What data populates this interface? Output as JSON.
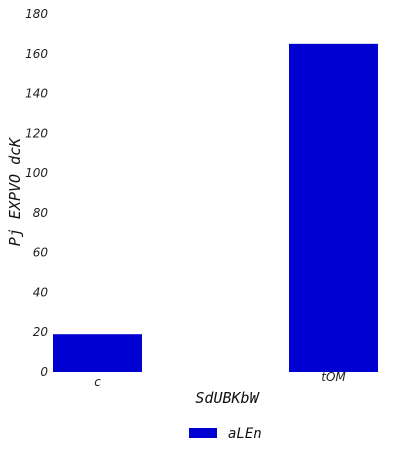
{
  "chart_data": {
    "type": "bar",
    "categories": [
      "c",
      "tOM"
    ],
    "series": [
      {
        "name": "aLEn",
        "values": [
          19,
          165
        ],
        "color": "#0000d0"
      }
    ],
    "title": "",
    "xlabel": "SdUBKbW",
    "ylabel": "Pj EXPVO dcK",
    "ylim": [
      0,
      180
    ],
    "yticks": [
      0,
      20,
      40,
      60,
      80,
      100,
      120,
      140,
      160,
      180
    ],
    "grid": false,
    "legend_position": "bottom-center"
  }
}
